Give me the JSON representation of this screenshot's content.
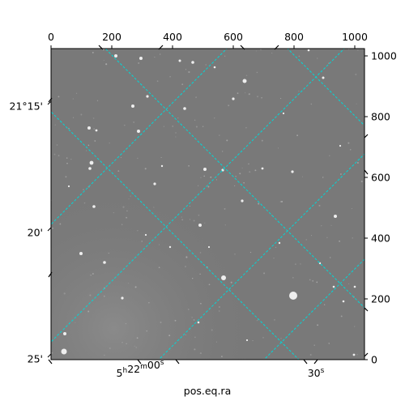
{
  "figure": {
    "xlabel": "pos.eq.ra",
    "top_ticks": [
      "0",
      "200",
      "400",
      "600",
      "800",
      "1000"
    ],
    "right_ticks": [
      "0",
      "200",
      "400",
      "600",
      "800",
      "1000"
    ],
    "left_ticks": [
      "21°15'",
      "20'",
      "25'"
    ],
    "bottom_ticks": [
      {
        "h": "5",
        "hsup": "h",
        "m": "22",
        "msup": "m",
        "s": "00",
        "ssup": "s"
      },
      {
        "s": "30",
        "ssup": "s"
      }
    ]
  },
  "colors": {
    "grid": "#00d8d8",
    "sky": "#777777",
    "frame": "#000000"
  }
}
